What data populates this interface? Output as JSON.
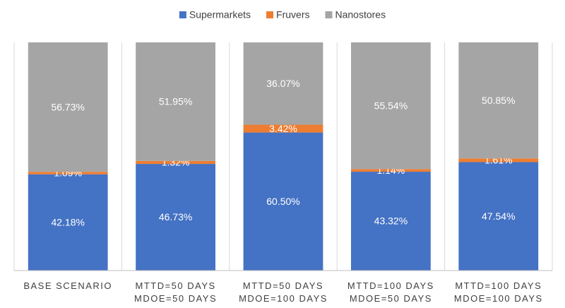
{
  "chart_data": {
    "type": "stacked_bar",
    "categories": [
      "BASE SCENARIO",
      "MTTD=50 DAYS\nMDOE=50 DAYS",
      "MTTD=50 DAYS\nMDOE=100 DAYS",
      "MTTD=100 DAYS\nMDOE=50 DAYS",
      "MTTD=100 DAYS\nMDOE=100 DAYS"
    ],
    "series": [
      {
        "name": "Supermarkets",
        "color": "#4472c4",
        "values": [
          42.18,
          46.73,
          60.5,
          43.32,
          47.54
        ],
        "value_labels": [
          "42.18%",
          "46.73%",
          "60.50%",
          "43.32%",
          "47.54%"
        ]
      },
      {
        "name": "Fruvers",
        "color": "#ed7d31",
        "values": [
          1.09,
          1.32,
          3.42,
          1.14,
          1.61
        ],
        "value_labels": [
          "1.09%",
          "1.32%",
          "3.42%",
          "1.14%",
          "1.61%"
        ]
      },
      {
        "name": "Nanostores",
        "color": "#a5a5a5",
        "values": [
          56.73,
          51.95,
          36.07,
          55.54,
          50.85
        ],
        "value_labels": [
          "56.73%",
          "51.95%",
          "36.07%",
          "55.54%",
          "50.85%"
        ]
      }
    ],
    "ylim": [
      0,
      100
    ],
    "legend": "top"
  }
}
